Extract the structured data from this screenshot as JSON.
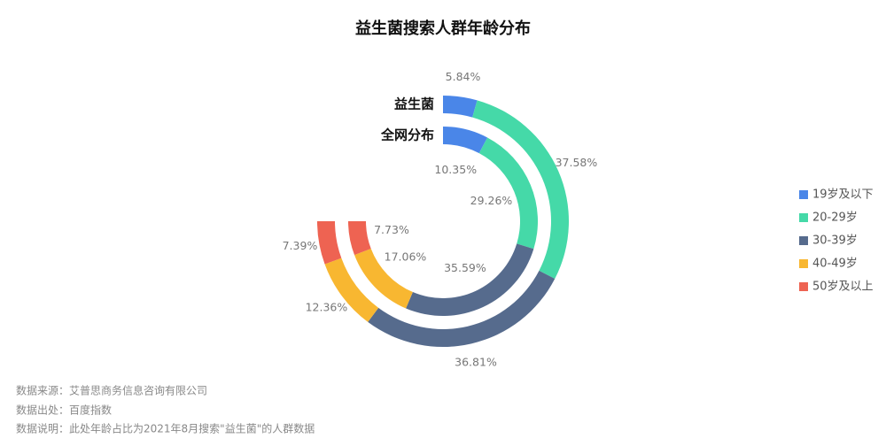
{
  "chart_data": {
    "type": "radial_bar",
    "title": "益生菌搜索人群年龄分布",
    "categories": [
      "19岁及以下",
      "20-29岁",
      "30-39岁",
      "40-49岁",
      "50岁及以上"
    ],
    "colors": [
      "#4a86e8",
      "#45d9a8",
      "#566b8d",
      "#f8b731",
      "#ee6352"
    ],
    "series": [
      {
        "name": "益生菌",
        "values": [
          5.84,
          37.58,
          36.81,
          12.36,
          7.39
        ],
        "value_labels": [
          "5.84%",
          "37.58%",
          "36.81%",
          "12.36%",
          "7.39%"
        ]
      },
      {
        "name": "全网分布",
        "values": [
          10.35,
          29.26,
          35.59,
          17.06,
          7.73
        ],
        "value_labels": [
          "10.35%",
          "29.26%",
          "35.59%",
          "17.06%",
          "7.73%"
        ]
      }
    ],
    "legend": "right"
  },
  "notes": [
    "数据来源：艾普思商务信息咨询有限公司",
    "数据出处：百度指数",
    "数据说明：此处年龄占比为2021年8月搜索\"益生菌\"的人群数据"
  ]
}
